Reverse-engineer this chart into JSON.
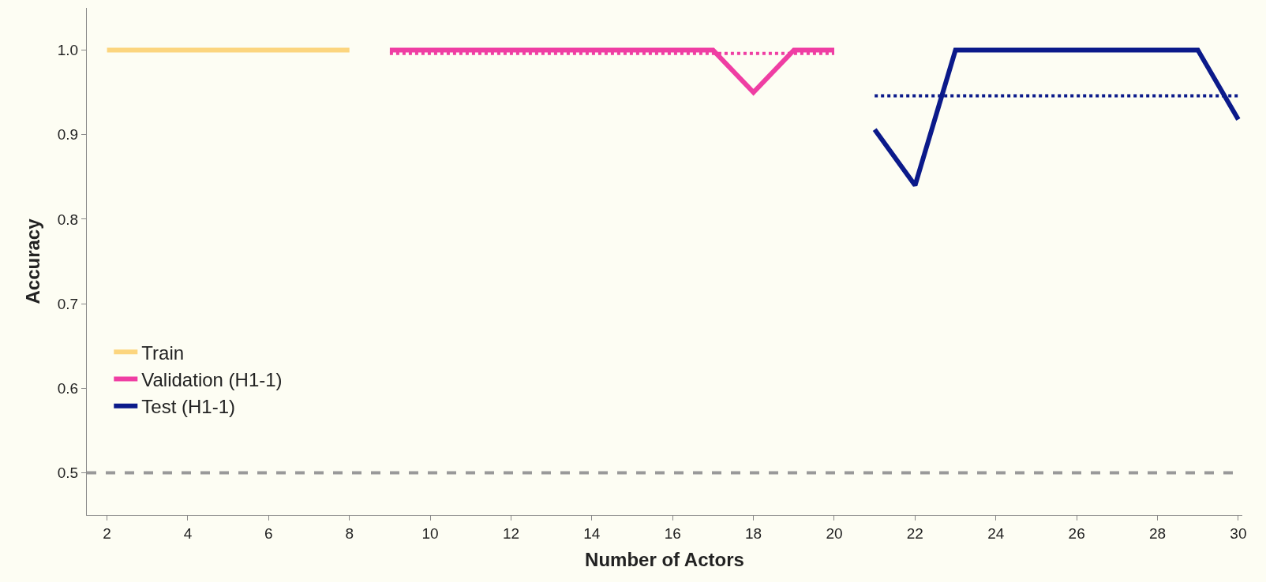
{
  "chart_data": {
    "type": "line",
    "xlabel": "Number of Actors",
    "ylabel": "Accuracy",
    "series": [
      {
        "name": "Train",
        "color": "#fcd57e",
        "x": [
          2,
          3,
          4,
          5,
          6,
          7,
          8
        ],
        "values": [
          1.0,
          1.0,
          1.0,
          1.0,
          1.0,
          1.0,
          1.0
        ]
      },
      {
        "name": "Validation (H1-1)",
        "color": "#ef3ea3",
        "x": [
          9,
          10,
          11,
          12,
          13,
          14,
          15,
          16,
          17,
          18,
          19,
          20
        ],
        "values": [
          1.0,
          1.0,
          1.0,
          1.0,
          1.0,
          1.0,
          1.0,
          1.0,
          1.0,
          0.95,
          1.0,
          1.0
        ]
      },
      {
        "name": "Test (H1-1)",
        "color": "#0b1a8a",
        "x": [
          21,
          22,
          23,
          24,
          25,
          26,
          27,
          28,
          29,
          30
        ],
        "values": [
          0.906,
          0.84,
          1.0,
          1.0,
          1.0,
          1.0,
          1.0,
          1.0,
          1.0,
          0.918
        ]
      },
      {
        "color": "#ef3ea3",
        "line_style": "dotted",
        "x": [
          9,
          20
        ],
        "values": [
          0.996,
          0.996
        ]
      },
      {
        "color": "#0b1a8a",
        "line_style": "dotted",
        "x": [
          21,
          30
        ],
        "values": [
          0.946,
          0.946
        ]
      }
    ],
    "ref_lines": [
      {
        "axis": "y",
        "value": 0.5,
        "color": "#999999",
        "line_style": "dashed"
      }
    ],
    "xlim": [
      1.5,
      30.1
    ],
    "xticks": [
      2,
      4,
      6,
      8,
      10,
      12,
      14,
      16,
      18,
      20,
      22,
      24,
      26,
      28,
      30
    ],
    "ylim": [
      0.45,
      1.05
    ],
    "yticks": [
      {
        "value": 0.5,
        "label": "0.5"
      },
      {
        "value": 0.6,
        "label": "0.6"
      },
      {
        "value": 0.7,
        "label": "0.7"
      },
      {
        "value": 0.8,
        "label": "0.8"
      },
      {
        "value": 0.9,
        "label": "0.9"
      },
      {
        "value": 1.0,
        "label": "1.0"
      }
    ],
    "grid": false,
    "legend": "bottom left",
    "marker": "none",
    "line_style": "solid"
  }
}
